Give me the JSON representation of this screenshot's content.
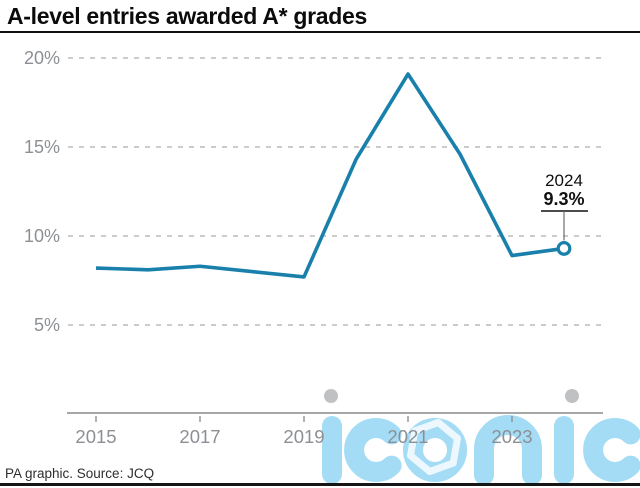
{
  "title": "A-level entries awarded A* grades",
  "footer": {
    "source_line": "PA graphic. Source: JCQ"
  },
  "watermark": {
    "brand": "iconic"
  },
  "colors": {
    "line": "#1980ab",
    "marker_fill": "#ffffff",
    "axis_text": "#8c9094",
    "gridline": "#aeaeae",
    "axis_line": "#8a8a8a",
    "annotation_text": "#111111",
    "annotation_pointer": "#6e6e6e",
    "title_text": "#0b0b0b",
    "watermark_blue": "#a4dcf6",
    "watermark_hexagon": "#edf8fe",
    "watermark_dot_gray": "#bfc1c3"
  },
  "chart_data": {
    "type": "line",
    "title": "A-level entries awarded A* grades",
    "x": [
      2015,
      2016,
      2017,
      2018,
      2019,
      2020,
      2021,
      2022,
      2023,
      2024
    ],
    "values": [
      8.2,
      8.1,
      8.3,
      8.0,
      7.7,
      14.3,
      19.1,
      14.6,
      8.9,
      9.3
    ],
    "unit": "%",
    "xticks": [
      2015,
      2017,
      2019,
      2021,
      2023
    ],
    "xtick_labels": [
      "2015",
      "2017",
      "2019",
      "2021",
      "2023"
    ],
    "yticks": [
      5,
      10,
      15,
      20
    ],
    "ytick_labels": [
      "5%",
      "10%",
      "15%",
      "20%"
    ],
    "ylim": [
      0,
      21
    ],
    "grid": "horizontal-dashed",
    "legend": "none",
    "last_point_marker": "open-circle",
    "annotation": {
      "year_label": "2024",
      "value_label": "9.3%"
    }
  }
}
